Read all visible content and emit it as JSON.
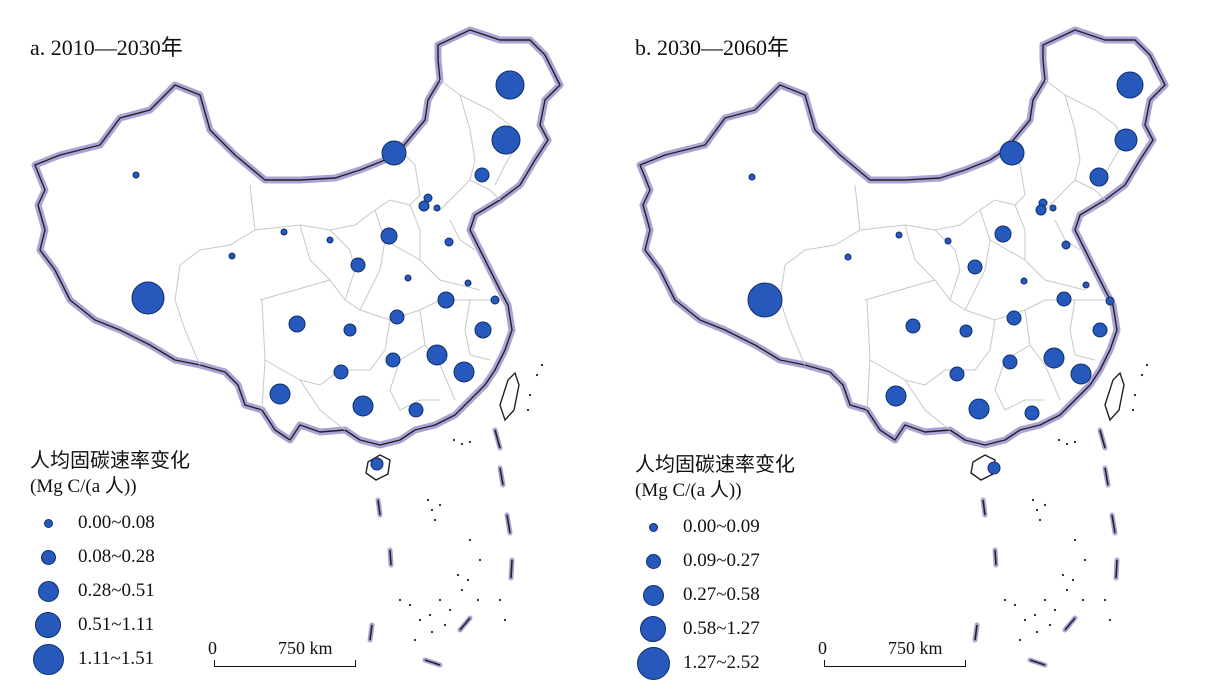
{
  "panels": [
    {
      "title": "a. 2010—2030年",
      "legend": {
        "title": "人均固碳速率变化",
        "unit": "(Mg C/(a 人))",
        "classes": [
          "0.00~0.08",
          "0.08~0.28",
          "0.28~0.51",
          "0.51~1.11",
          "1.11~1.51"
        ]
      },
      "scale": {
        "zero": "0",
        "distance": "750 km"
      }
    },
    {
      "title": "b. 2030—2060年",
      "legend": {
        "title": "人均固碳速率变化",
        "unit": "(Mg C/(a 人))",
        "classes": [
          "0.00~0.09",
          "0.09~0.27",
          "0.27~0.58",
          "0.58~1.27",
          "1.27~2.52"
        ]
      },
      "scale": {
        "zero": "0",
        "distance": "750 km"
      }
    }
  ],
  "symbol_color": "#2659bb",
  "symbol_outline": "#0f2f6e",
  "border_color": "#a9a3d6"
}
